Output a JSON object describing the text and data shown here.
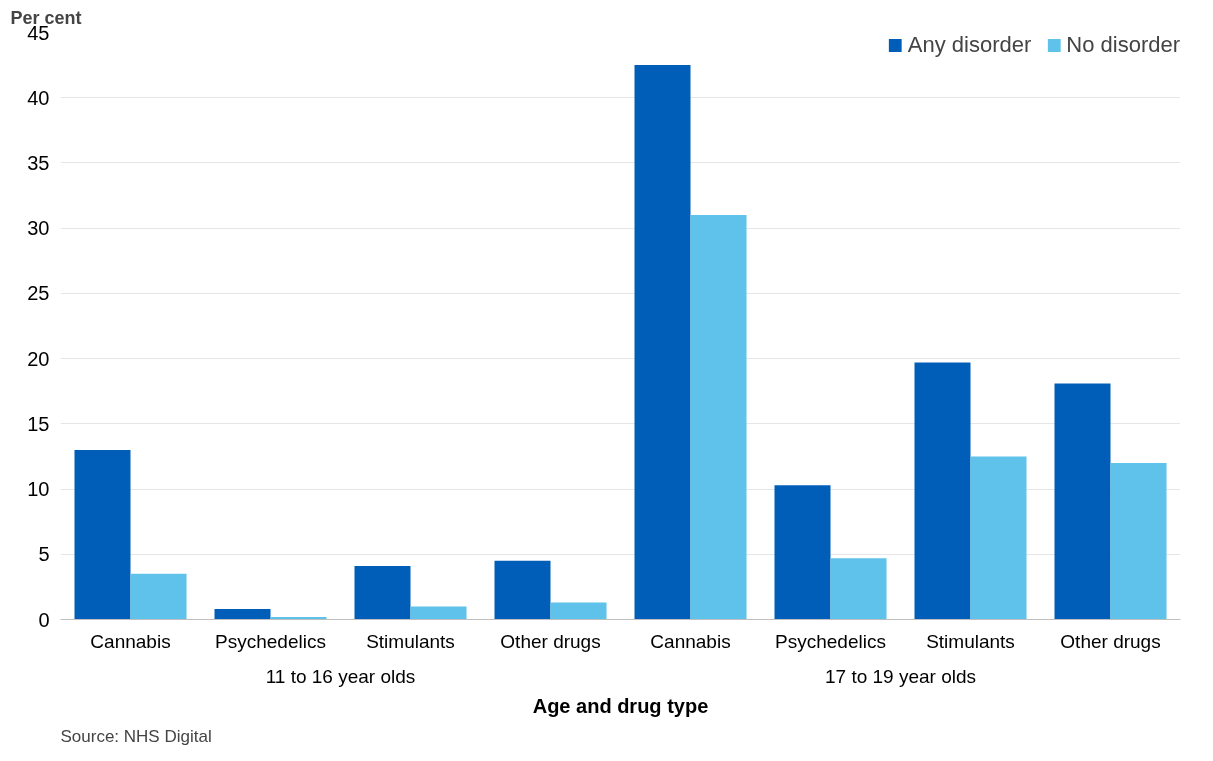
{
  "chart_data": {
    "type": "bar",
    "ylabel": "Per cent",
    "xlabel": "Age and drug type",
    "categories": [
      "Cannabis",
      "Psychedelics",
      "Stimulants",
      "Other drugs",
      "Cannabis",
      "Psychedelics",
      "Stimulants",
      "Other drugs"
    ],
    "series": [
      {
        "name": "Any disorder",
        "color": "#005eb8",
        "values": [
          13.0,
          0.8,
          4.1,
          4.5,
          42.5,
          10.3,
          19.7,
          18.1
        ]
      },
      {
        "name": "No disorder",
        "color": "#5fc2ea",
        "values": [
          3.5,
          0.2,
          1.0,
          1.3,
          31.0,
          4.7,
          12.5,
          12.0
        ]
      }
    ],
    "annotations": [
      "11 to 16 year olds",
      "17 to 19 year olds",
      "Source: NHS Digital"
    ],
    "ylim": [
      0,
      45
    ],
    "yticks": [
      0,
      5,
      10,
      15,
      20,
      25,
      30,
      35,
      40,
      45
    ],
    "grid": "y",
    "legend": "top right"
  }
}
